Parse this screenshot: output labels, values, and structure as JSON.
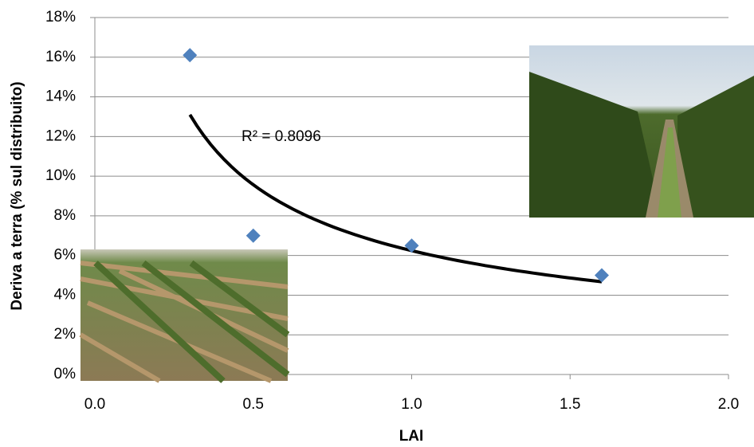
{
  "chart_data": {
    "type": "scatter",
    "x_label": "LAI",
    "y_label": "Deriva a terra (% sul distribuito)",
    "x": [
      0.3,
      0.5,
      1.0,
      1.6
    ],
    "series": [
      {
        "color": "#4f81bd",
        "values": [
          16.1,
          7.0,
          6.5,
          5.0
        ]
      }
    ],
    "trendline": "power",
    "trend_color": "#000000",
    "r2_label": "R² = 0.8096",
    "xlim": [
      0,
      2
    ],
    "xticks": [
      {
        "value": 0,
        "label": "0.0"
      },
      {
        "value": 0.5,
        "label": "0.5"
      },
      {
        "value": 1,
        "label": "1.0"
      },
      {
        "value": 1.5,
        "label": "1.5"
      },
      {
        "value": 2,
        "label": "2.0"
      }
    ],
    "ylim": [
      0,
      18
    ],
    "yticks": [
      {
        "value": 0,
        "label": "0%"
      },
      {
        "value": 2,
        "label": "2%"
      },
      {
        "value": 4,
        "label": "4%"
      },
      {
        "value": 6,
        "label": "6%"
      },
      {
        "value": 8,
        "label": "8%"
      },
      {
        "value": 10,
        "label": "10%"
      },
      {
        "value": 12,
        "label": "12%"
      },
      {
        "value": 14,
        "label": "14%"
      },
      {
        "value": 16,
        "label": "16%"
      },
      {
        "value": 18,
        "label": "18%"
      }
    ],
    "grid": true
  }
}
